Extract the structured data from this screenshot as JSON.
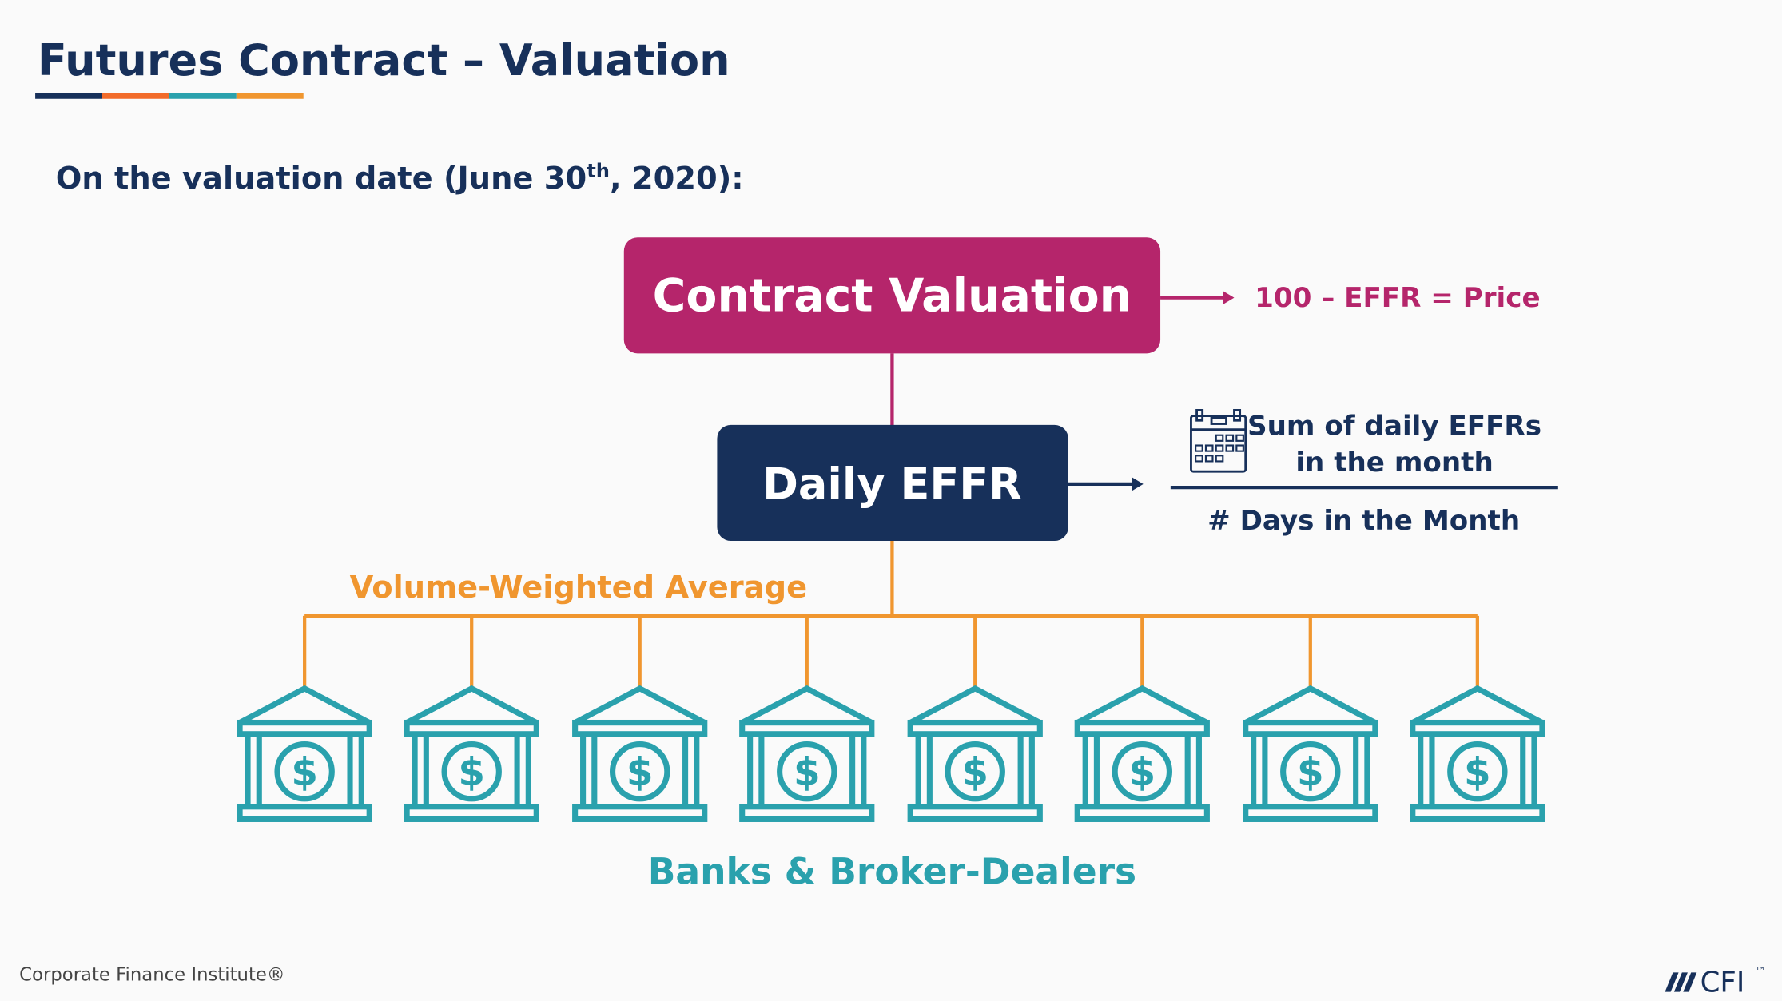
{
  "header": {
    "title": "Futures Contract – Valuation"
  },
  "intro": {
    "before": "On the valuation date (June 30",
    "superscript": "th",
    "after": ", 2020):"
  },
  "nodes": [
    {
      "label": "Contract Valuation"
    },
    {
      "label": "Daily EFFR"
    }
  ],
  "formulas": {
    "price": "100 – EFFR = Price",
    "numerator": [
      "Sum of daily EFFRs",
      "in the month"
    ],
    "denominator": "# Days in the Month"
  },
  "edge_label": "Volume-Weighted Average",
  "group_label": "Banks & Broker-Dealers",
  "footer": {
    "source": "Corporate Finance Institute®",
    "logo": "CFI",
    "trademark": "™"
  }
}
